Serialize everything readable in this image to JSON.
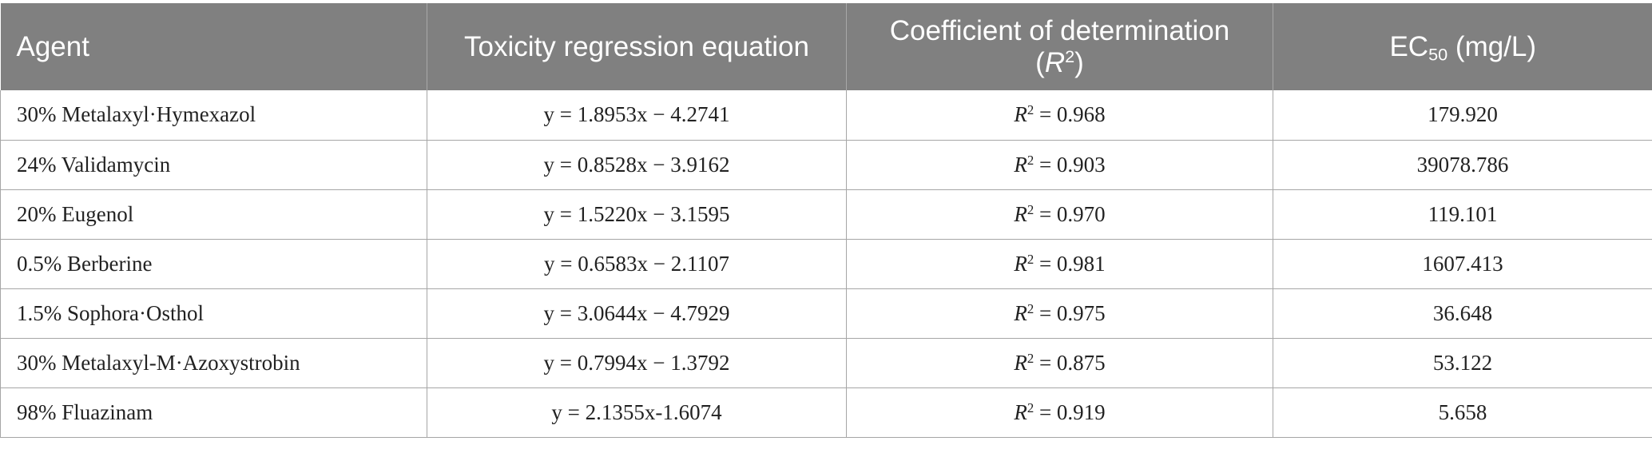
{
  "table": {
    "headers": {
      "agent": "Agent",
      "equation": "Toxicity regression equation",
      "r2_label": "Coefficient of determination",
      "r2_open": "(",
      "r2_symbol": "R",
      "r2_sup": "2",
      "r2_close": ")",
      "ec_prefix": "EC",
      "ec_sub": "50",
      "ec_unit": " (mg/L)"
    },
    "r2_prefix": {
      "symbol": "R",
      "sup": "2",
      "eq": " = "
    },
    "rows": [
      {
        "agent": "30% Metalaxyl·Hymexazol",
        "equation": "y = 1.8953x − 4.2741",
        "r2": "0.968",
        "ec50": "179.920"
      },
      {
        "agent": "24% Validamycin",
        "equation": "y = 0.8528x − 3.9162",
        "r2": "0.903",
        "ec50": "39078.786"
      },
      {
        "agent": "20% Eugenol",
        "equation": "y = 1.5220x − 3.1595",
        "r2": "0.970",
        "ec50": "119.101"
      },
      {
        "agent": "0.5% Berberine",
        "equation": "y = 0.6583x − 2.1107",
        "r2": "0.981",
        "ec50": "1607.413"
      },
      {
        "agent": "1.5% Sophora·Osthol",
        "equation": "y = 3.0644x − 4.7929",
        "r2": "0.975",
        "ec50": "36.648"
      },
      {
        "agent": "30% Metalaxyl-M·Azoxystrobin",
        "equation": "y = 0.7994x − 1.3792",
        "r2": "0.875",
        "ec50": "53.122"
      },
      {
        "agent": "98% Fluazinam",
        "equation": "y = 2.1355x-1.6074",
        "r2": "0.919",
        "ec50": "5.658"
      }
    ]
  },
  "colors": {
    "header_bg": "#808080",
    "header_text": "#ffffff",
    "grid": "#a6a6a6"
  }
}
